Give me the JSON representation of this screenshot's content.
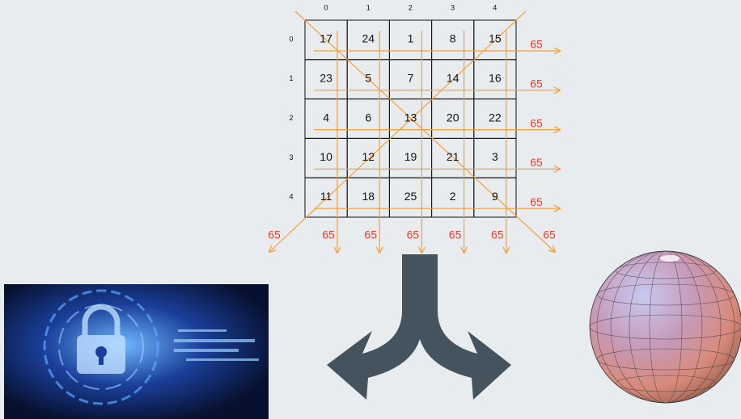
{
  "grid": {
    "column_indices": [
      0,
      1,
      2,
      3,
      4
    ],
    "row_indices": [
      0,
      1,
      2,
      3,
      4
    ],
    "rows": [
      [
        17,
        24,
        1,
        8,
        15
      ],
      [
        23,
        5,
        7,
        14,
        16
      ],
      [
        4,
        6,
        13,
        20,
        22
      ],
      [
        10,
        12,
        19,
        21,
        3
      ],
      [
        11,
        18,
        25,
        2,
        9
      ]
    ],
    "row_sums": [
      65,
      65,
      65,
      65,
      65
    ],
    "column_sums": [
      65,
      65,
      65,
      65,
      65
    ],
    "anti_diagonal_sum": 65,
    "main_diagonal_sum": 65
  }
}
